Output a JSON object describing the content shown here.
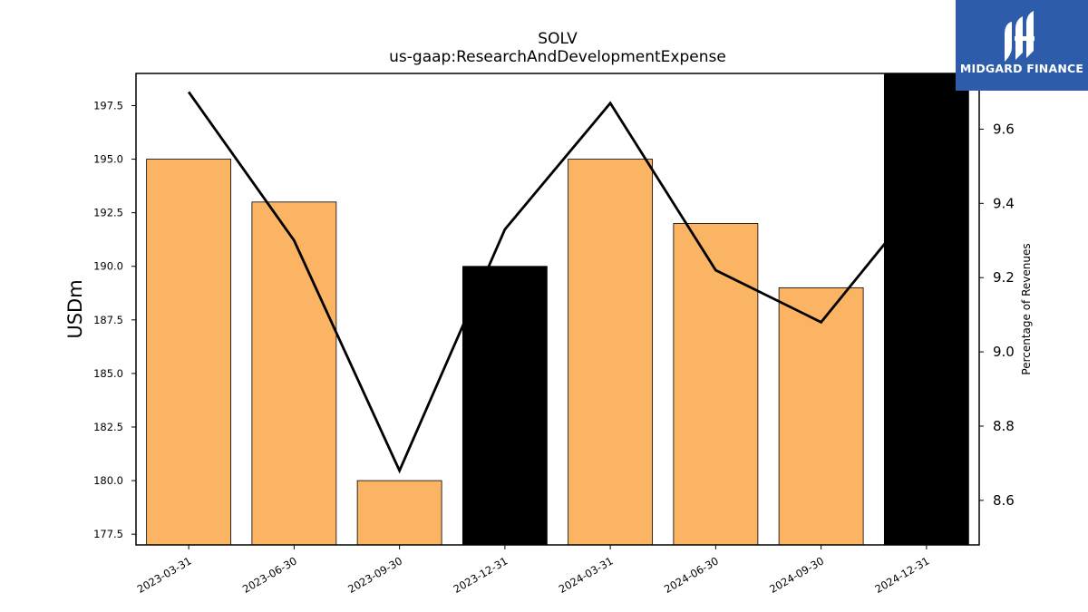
{
  "chart_data": {
    "type": "bar",
    "title": "SOLV",
    "subtitle": "us-gaap:ResearchAndDevelopmentExpense",
    "ylabel": "USDm",
    "y2label": "Percentage of Revenues",
    "categories": [
      "2023-03-31",
      "2023-06-30",
      "2023-09-30",
      "2023-12-31",
      "2024-03-31",
      "2024-06-30",
      "2024-09-30",
      "2024-12-31"
    ],
    "series": [
      {
        "axis": "left",
        "kind": "bar",
        "values": [
          195,
          193,
          180,
          190,
          195,
          192,
          189,
          199
        ],
        "colors": [
          "#fbb463",
          "#fbb463",
          "#fbb463",
          "#000000",
          "#fbb463",
          "#fbb463",
          "#fbb463",
          "#000000"
        ]
      },
      {
        "axis": "right",
        "kind": "line",
        "color": "#000000",
        "values": [
          9.7,
          9.3,
          8.68,
          9.33,
          9.67,
          9.22,
          9.08,
          9.43
        ]
      }
    ],
    "ylim": [
      177,
      199
    ],
    "yticks": [
      "177.5",
      "180.0",
      "182.5",
      "185.0",
      "187.5",
      "190.0",
      "192.5",
      "195.0",
      "197.5"
    ],
    "y2lim": [
      8.48,
      9.75
    ],
    "y2ticks": [
      "8.6",
      "8.8",
      "9.0",
      "9.2",
      "9.4",
      "9.6"
    ],
    "grid": false
  },
  "logo": {
    "text": "MIDGARD FINANCE",
    "bg": "#2d5cab"
  }
}
